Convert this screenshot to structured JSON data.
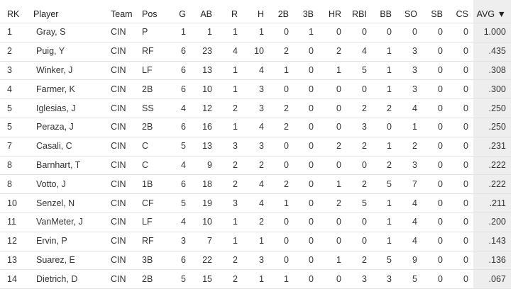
{
  "table": {
    "columns": [
      "RK",
      "Player",
      "Team",
      "Pos",
      "G",
      "AB",
      "R",
      "H",
      "2B",
      "3B",
      "HR",
      "RBI",
      "BB",
      "SO",
      "SB",
      "CS",
      "AVG ▼"
    ],
    "rows": [
      [
        "1",
        "Gray, S",
        "CIN",
        "P",
        "1",
        "1",
        "1",
        "1",
        "0",
        "1",
        "0",
        "0",
        "0",
        "0",
        "0",
        "0",
        "1.000"
      ],
      [
        "2",
        "Puig, Y",
        "CIN",
        "RF",
        "6",
        "23",
        "4",
        "10",
        "2",
        "0",
        "2",
        "4",
        "1",
        "3",
        "0",
        "0",
        ".435"
      ],
      [
        "3",
        "Winker, J",
        "CIN",
        "LF",
        "6",
        "13",
        "1",
        "4",
        "1",
        "0",
        "1",
        "5",
        "1",
        "3",
        "0",
        "0",
        ".308"
      ],
      [
        "4",
        "Farmer, K",
        "CIN",
        "2B",
        "6",
        "10",
        "1",
        "3",
        "0",
        "0",
        "0",
        "0",
        "1",
        "3",
        "0",
        "0",
        ".300"
      ],
      [
        "5",
        "Iglesias, J",
        "CIN",
        "SS",
        "4",
        "12",
        "2",
        "3",
        "2",
        "0",
        "0",
        "2",
        "2",
        "4",
        "0",
        "0",
        ".250"
      ],
      [
        "5",
        "Peraza, J",
        "CIN",
        "2B",
        "6",
        "16",
        "1",
        "4",
        "2",
        "0",
        "0",
        "3",
        "0",
        "1",
        "0",
        "0",
        ".250"
      ],
      [
        "7",
        "Casali, C",
        "CIN",
        "C",
        "5",
        "13",
        "3",
        "3",
        "0",
        "0",
        "2",
        "2",
        "1",
        "2",
        "0",
        "0",
        ".231"
      ],
      [
        "8",
        "Barnhart, T",
        "CIN",
        "C",
        "4",
        "9",
        "2",
        "2",
        "0",
        "0",
        "0",
        "0",
        "2",
        "3",
        "0",
        "0",
        ".222"
      ],
      [
        "8",
        "Votto, J",
        "CIN",
        "1B",
        "6",
        "18",
        "2",
        "4",
        "2",
        "0",
        "1",
        "2",
        "5",
        "7",
        "0",
        "0",
        ".222"
      ],
      [
        "10",
        "Senzel, N",
        "CIN",
        "CF",
        "5",
        "19",
        "3",
        "4",
        "1",
        "0",
        "2",
        "5",
        "1",
        "4",
        "0",
        "0",
        ".211"
      ],
      [
        "11",
        "VanMeter, J",
        "CIN",
        "LF",
        "4",
        "10",
        "1",
        "2",
        "0",
        "0",
        "0",
        "0",
        "1",
        "4",
        "0",
        "0",
        ".200"
      ],
      [
        "12",
        "Ervin, P",
        "CIN",
        "RF",
        "3",
        "7",
        "1",
        "1",
        "0",
        "0",
        "0",
        "0",
        "1",
        "4",
        "0",
        "0",
        ".143"
      ],
      [
        "13",
        "Suarez, E",
        "CIN",
        "3B",
        "6",
        "22",
        "2",
        "3",
        "0",
        "0",
        "1",
        "2",
        "5",
        "9",
        "0",
        "0",
        ".136"
      ],
      [
        "14",
        "Dietrich, D",
        "CIN",
        "2B",
        "5",
        "15",
        "2",
        "1",
        "1",
        "0",
        "0",
        "3",
        "3",
        "5",
        "0",
        "0",
        ".067"
      ]
    ]
  }
}
